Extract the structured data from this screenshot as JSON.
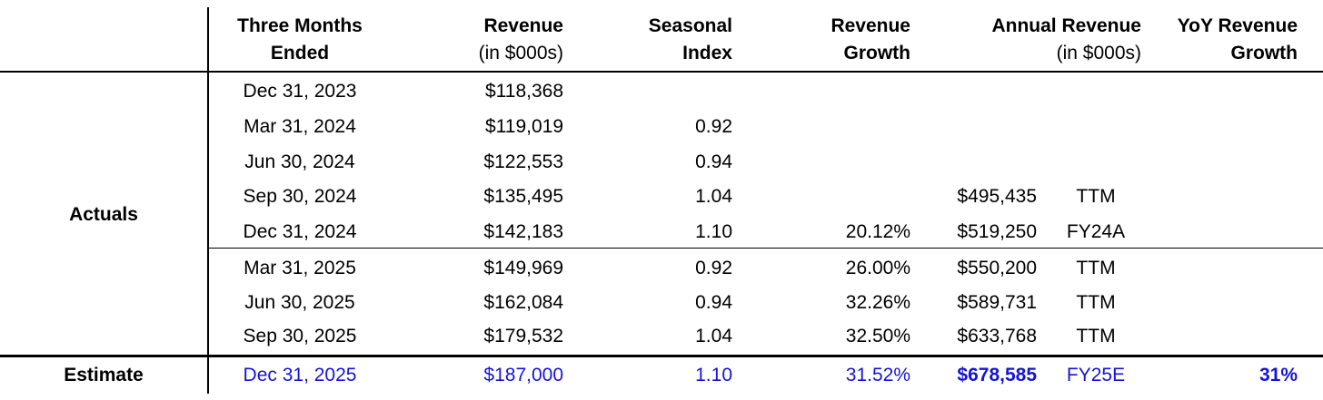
{
  "headers": {
    "period_line1": "Three Months",
    "period_line2": "Ended",
    "revenue_line1": "Revenue",
    "revenue_line2": "(in $000s)",
    "seasonal_line1": "Seasonal",
    "seasonal_line2": "Index",
    "growth_line1": "Revenue",
    "growth_line2": "Growth",
    "annual_line1": "Annual Revenue",
    "annual_line2": "(in $000s)",
    "yoy_line1": "YoY Revenue",
    "yoy_line2": "Growth"
  },
  "groups": {
    "actuals": "Actuals",
    "estimate": "Estimate"
  },
  "rows": [
    {
      "period": "Dec 31, 2023",
      "revenue": "$118,368",
      "index": "",
      "growth": "",
      "annual": "",
      "basis": "",
      "yoy": ""
    },
    {
      "period": "Mar 31, 2024",
      "revenue": "$119,019",
      "index": "0.92",
      "growth": "",
      "annual": "",
      "basis": "",
      "yoy": ""
    },
    {
      "period": "Jun 30, 2024",
      "revenue": "$122,553",
      "index": "0.94",
      "growth": "",
      "annual": "",
      "basis": "",
      "yoy": ""
    },
    {
      "period": "Sep 30, 2024",
      "revenue": "$135,495",
      "index": "1.04",
      "growth": "",
      "annual": "$495,435",
      "basis": "TTM",
      "yoy": ""
    },
    {
      "period": "Dec 31, 2024",
      "revenue": "$142,183",
      "index": "1.10",
      "growth": "20.12%",
      "annual": "$519,250",
      "basis": "FY24A",
      "yoy": ""
    },
    {
      "period": "Mar 31, 2025",
      "revenue": "$149,969",
      "index": "0.92",
      "growth": "26.00%",
      "annual": "$550,200",
      "basis": "TTM",
      "yoy": ""
    },
    {
      "period": "Jun 30, 2025",
      "revenue": "$162,084",
      "index": "0.94",
      "growth": "32.26%",
      "annual": "$589,731",
      "basis": "TTM",
      "yoy": ""
    },
    {
      "period": "Sep 30, 2025",
      "revenue": "$179,532",
      "index": "1.04",
      "growth": "32.50%",
      "annual": "$633,768",
      "basis": "TTM",
      "yoy": ""
    },
    {
      "period": "Dec 31, 2025",
      "revenue": "$187,000",
      "index": "1.10",
      "growth": "31.52%",
      "annual": "$678,585",
      "basis": "FY25E",
      "yoy": "31%"
    }
  ],
  "colors": {
    "estimate_text": "#1414d9",
    "rule": "#000000"
  }
}
